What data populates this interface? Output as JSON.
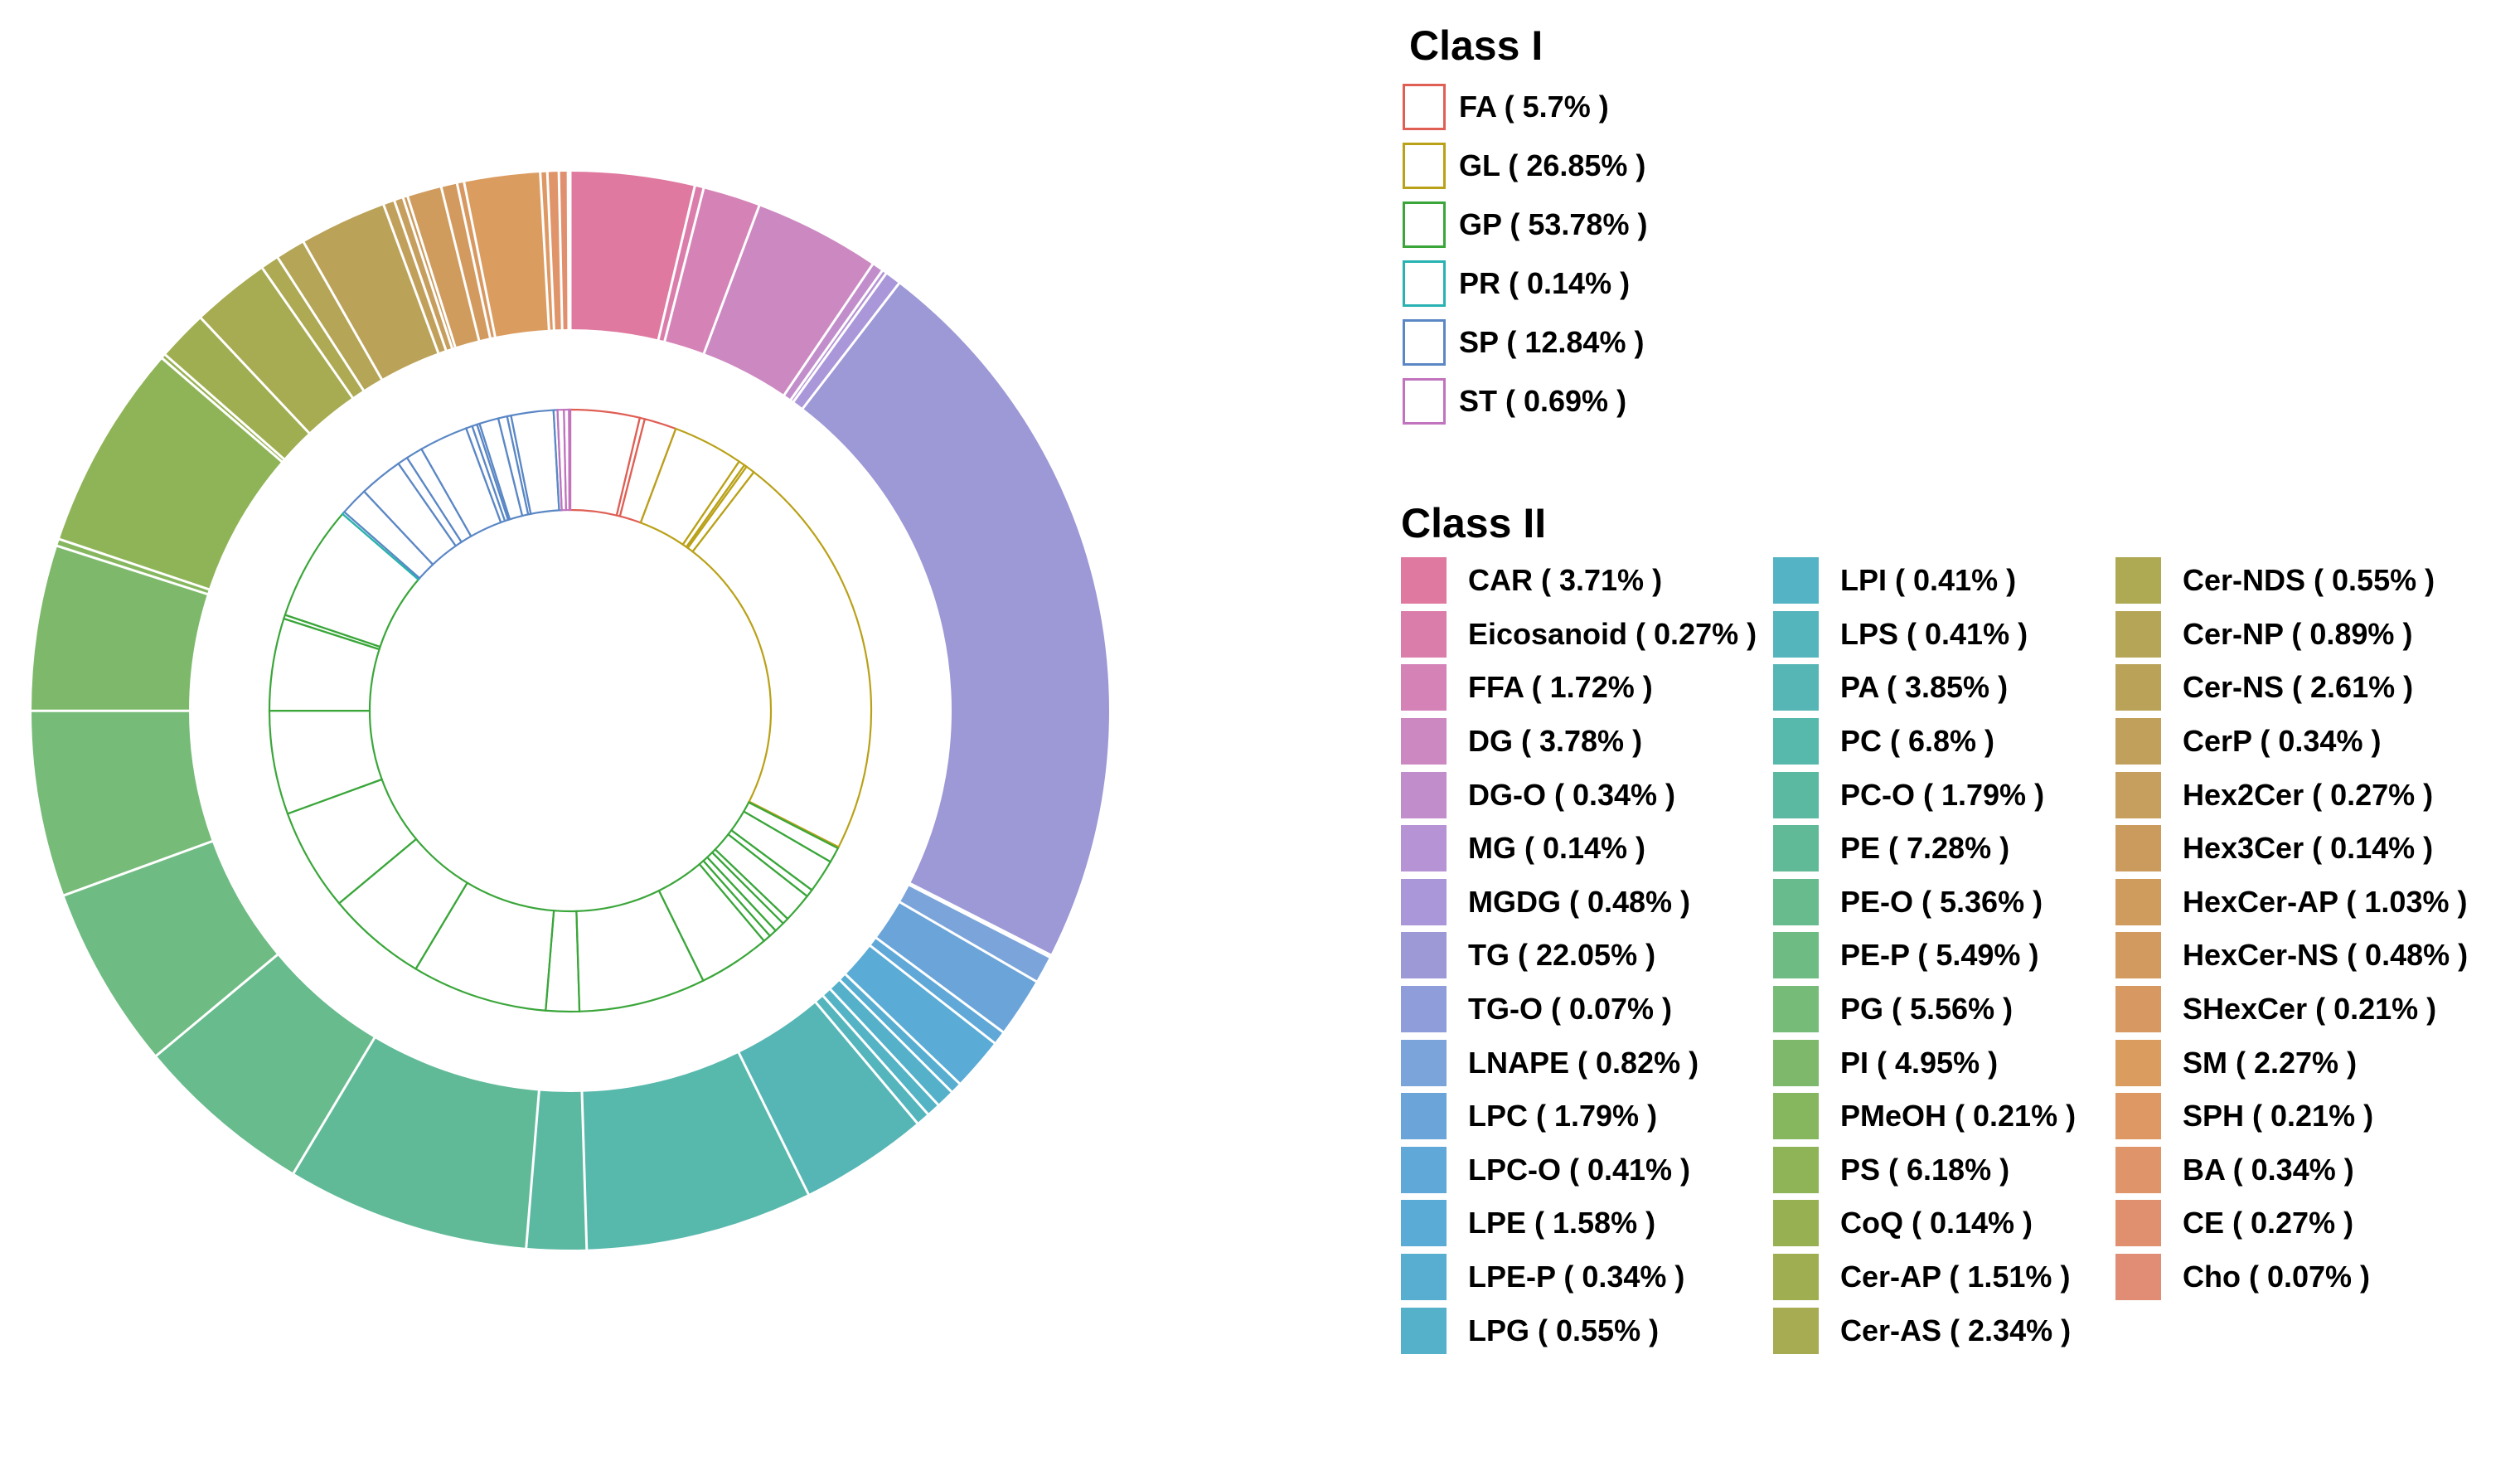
{
  "figure": {
    "background": "#ffffff"
  },
  "chart_data": {
    "type": "sunburst",
    "title": "",
    "direction": "clockwise",
    "start_angle": "12-oclock",
    "legend_position": "right",
    "rings": {
      "inner": "Class II wedges outlined in Class I parent color (white fill)",
      "outer": "Class II segments filled, separated by white divider lines"
    },
    "class1": {
      "title": "Class I",
      "series": [
        {
          "name": "FA",
          "value_pct": 5.7,
          "color": "#df5f55",
          "label": "FA ( 5.7% )"
        },
        {
          "name": "GL",
          "value_pct": 26.85,
          "color": "#b9a118",
          "label": "GL ( 26.85% )"
        },
        {
          "name": "GP",
          "value_pct": 53.78,
          "color": "#3aa63a",
          "label": "GP ( 53.78% )"
        },
        {
          "name": "PR",
          "value_pct": 0.14,
          "color": "#29b2b2",
          "label": "PR ( 0.14% )"
        },
        {
          "name": "SP",
          "value_pct": 12.84,
          "color": "#5b87c5",
          "label": "SP ( 12.84% )"
        },
        {
          "name": "ST",
          "value_pct": 0.69,
          "color": "#c173bd",
          "label": "ST ( 0.69% )"
        }
      ]
    },
    "class2": {
      "title": "Class II",
      "legend_column_sizes": [
        15,
        15,
        14
      ],
      "series": [
        {
          "name": "CAR",
          "value_pct": 3.71,
          "parent": "FA",
          "color": "#e0799f",
          "label": "CAR ( 3.71% )"
        },
        {
          "name": "Eicosanoid",
          "value_pct": 0.27,
          "parent": "FA",
          "color": "#db7dab",
          "label": "Eicosanoid ( 0.27% )"
        },
        {
          "name": "FFA",
          "value_pct": 1.72,
          "parent": "FA",
          "color": "#d583b7",
          "label": "FFA ( 1.72% )"
        },
        {
          "name": "DG",
          "value_pct": 3.78,
          "parent": "GL",
          "color": "#cc89c1",
          "label": "DG ( 3.78% )"
        },
        {
          "name": "DG-O",
          "value_pct": 0.34,
          "parent": "GL",
          "color": "#c18ecb",
          "label": "DG-O ( 0.34% )"
        },
        {
          "name": "MG",
          "value_pct": 0.14,
          "parent": "GL",
          "color": "#b593d4",
          "label": "MG ( 0.14% )"
        },
        {
          "name": "MGDG",
          "value_pct": 0.48,
          "parent": "GL",
          "color": "#a997d9",
          "label": "MGDG ( 0.48% )"
        },
        {
          "name": "TG",
          "value_pct": 22.05,
          "parent": "GL",
          "color": "#9d98d6",
          "label": "TG ( 22.05% )"
        },
        {
          "name": "TG-O",
          "value_pct": 0.07,
          "parent": "GL",
          "color": "#8f9dda",
          "label": "TG-O ( 0.07% )"
        },
        {
          "name": "LNAPE",
          "value_pct": 0.82,
          "parent": "GP",
          "color": "#7ba4da",
          "label": "LNAPE ( 0.82% )"
        },
        {
          "name": "LPC",
          "value_pct": 1.79,
          "parent": "GP",
          "color": "#6ba4d9",
          "label": "LPC ( 1.79% )"
        },
        {
          "name": "LPC-O",
          "value_pct": 0.41,
          "parent": "GP",
          "color": "#60a8d7",
          "label": "LPC-O ( 0.41% )"
        },
        {
          "name": "LPE",
          "value_pct": 1.58,
          "parent": "GP",
          "color": "#5aabd5",
          "label": "LPE ( 1.58% )"
        },
        {
          "name": "LPE-P",
          "value_pct": 0.34,
          "parent": "GP",
          "color": "#57aed0",
          "label": "LPE-P ( 0.34% )"
        },
        {
          "name": "LPG",
          "value_pct": 0.55,
          "parent": "GP",
          "color": "#55b1ca",
          "label": "LPG ( 0.55% )"
        },
        {
          "name": "LPI",
          "value_pct": 0.41,
          "parent": "GP",
          "color": "#54b3c4",
          "label": "LPI ( 0.41% )"
        },
        {
          "name": "LPS",
          "value_pct": 0.41,
          "parent": "GP",
          "color": "#54b5bd",
          "label": "LPS ( 0.41% )"
        },
        {
          "name": "PA",
          "value_pct": 3.85,
          "parent": "GP",
          "color": "#55b6b5",
          "label": "PA ( 3.85% )"
        },
        {
          "name": "PC",
          "value_pct": 6.8,
          "parent": "GP",
          "color": "#57b8ac",
          "label": "PC ( 6.8% )"
        },
        {
          "name": "PC-O",
          "value_pct": 1.79,
          "parent": "GP",
          "color": "#5bb9a2",
          "label": "PC-O ( 1.79% )"
        },
        {
          "name": "PE",
          "value_pct": 7.28,
          "parent": "GP",
          "color": "#60ba98",
          "label": "PE ( 7.28% )"
        },
        {
          "name": "PE-O",
          "value_pct": 5.36,
          "parent": "GP",
          "color": "#67bb8d",
          "label": "PE-O ( 5.36% )"
        },
        {
          "name": "PE-P",
          "value_pct": 5.49,
          "parent": "GP",
          "color": "#6ebc83",
          "label": "PE-P ( 5.49% )"
        },
        {
          "name": "PG",
          "value_pct": 5.56,
          "parent": "GP",
          "color": "#76bb78",
          "label": "PG ( 5.56% )"
        },
        {
          "name": "PI",
          "value_pct": 4.95,
          "parent": "GP",
          "color": "#7eb96b",
          "label": "PI ( 4.95% )"
        },
        {
          "name": "PMeOH",
          "value_pct": 0.21,
          "parent": "GP",
          "color": "#86b75f",
          "label": "PMeOH ( 0.21% )"
        },
        {
          "name": "PS",
          "value_pct": 6.18,
          "parent": "GP",
          "color": "#8fb457",
          "label": "PS ( 6.18% )"
        },
        {
          "name": "CoQ",
          "value_pct": 0.14,
          "parent": "PR",
          "color": "#97b152",
          "label": "CoQ ( 0.14% )"
        },
        {
          "name": "Cer-AP",
          "value_pct": 1.51,
          "parent": "SP",
          "color": "#9fae50",
          "label": "Cer-AP ( 1.51% )"
        },
        {
          "name": "Cer-AS",
          "value_pct": 2.34,
          "parent": "SP",
          "color": "#a7ab51",
          "label": "Cer-AS ( 2.34% )"
        },
        {
          "name": "Cer-NDS",
          "value_pct": 0.55,
          "parent": "SP",
          "color": "#aea953",
          "label": "Cer-NDS ( 0.55% )"
        },
        {
          "name": "Cer-NP",
          "value_pct": 0.89,
          "parent": "SP",
          "color": "#b5a556",
          "label": "Cer-NP ( 0.89% )"
        },
        {
          "name": "Cer-NS",
          "value_pct": 2.61,
          "parent": "SP",
          "color": "#bba259",
          "label": "Cer-NS ( 2.61% )"
        },
        {
          "name": "CerP",
          "value_pct": 0.34,
          "parent": "SP",
          "color": "#c1a05b",
          "label": "CerP ( 0.34% )"
        },
        {
          "name": "Hex2Cer",
          "value_pct": 0.27,
          "parent": "SP",
          "color": "#c69e5d",
          "label": "Hex2Cer ( 0.27% )"
        },
        {
          "name": "Hex3Cer",
          "value_pct": 0.14,
          "parent": "SP",
          "color": "#cb9b5e",
          "label": "Hex3Cer ( 0.14% )"
        },
        {
          "name": "HexCer-AP",
          "value_pct": 1.03,
          "parent": "SP",
          "color": "#d09c5e",
          "label": "HexCer-AP ( 1.03% )"
        },
        {
          "name": "HexCer-NS",
          "value_pct": 0.48,
          "parent": "SP",
          "color": "#d39a5f",
          "label": "HexCer-NS ( 0.48% )"
        },
        {
          "name": "SHexCer",
          "value_pct": 0.21,
          "parent": "SP",
          "color": "#d79861",
          "label": "SHexCer ( 0.21% )"
        },
        {
          "name": "SM",
          "value_pct": 2.27,
          "parent": "SP",
          "color": "#db9c60",
          "label": "SM ( 2.27% )"
        },
        {
          "name": "SPH",
          "value_pct": 0.21,
          "parent": "SP",
          "color": "#dd9864",
          "label": "SPH ( 0.21% )"
        },
        {
          "name": "BA",
          "value_pct": 0.34,
          "parent": "ST",
          "color": "#df9469",
          "label": "BA ( 0.34% )"
        },
        {
          "name": "CE",
          "value_pct": 0.27,
          "parent": "ST",
          "color": "#e0906f",
          "label": "CE ( 0.27% )"
        },
        {
          "name": "Cho",
          "value_pct": 0.07,
          "parent": "ST",
          "color": "#e18d76",
          "label": "Cho ( 0.07% )"
        }
      ]
    }
  }
}
